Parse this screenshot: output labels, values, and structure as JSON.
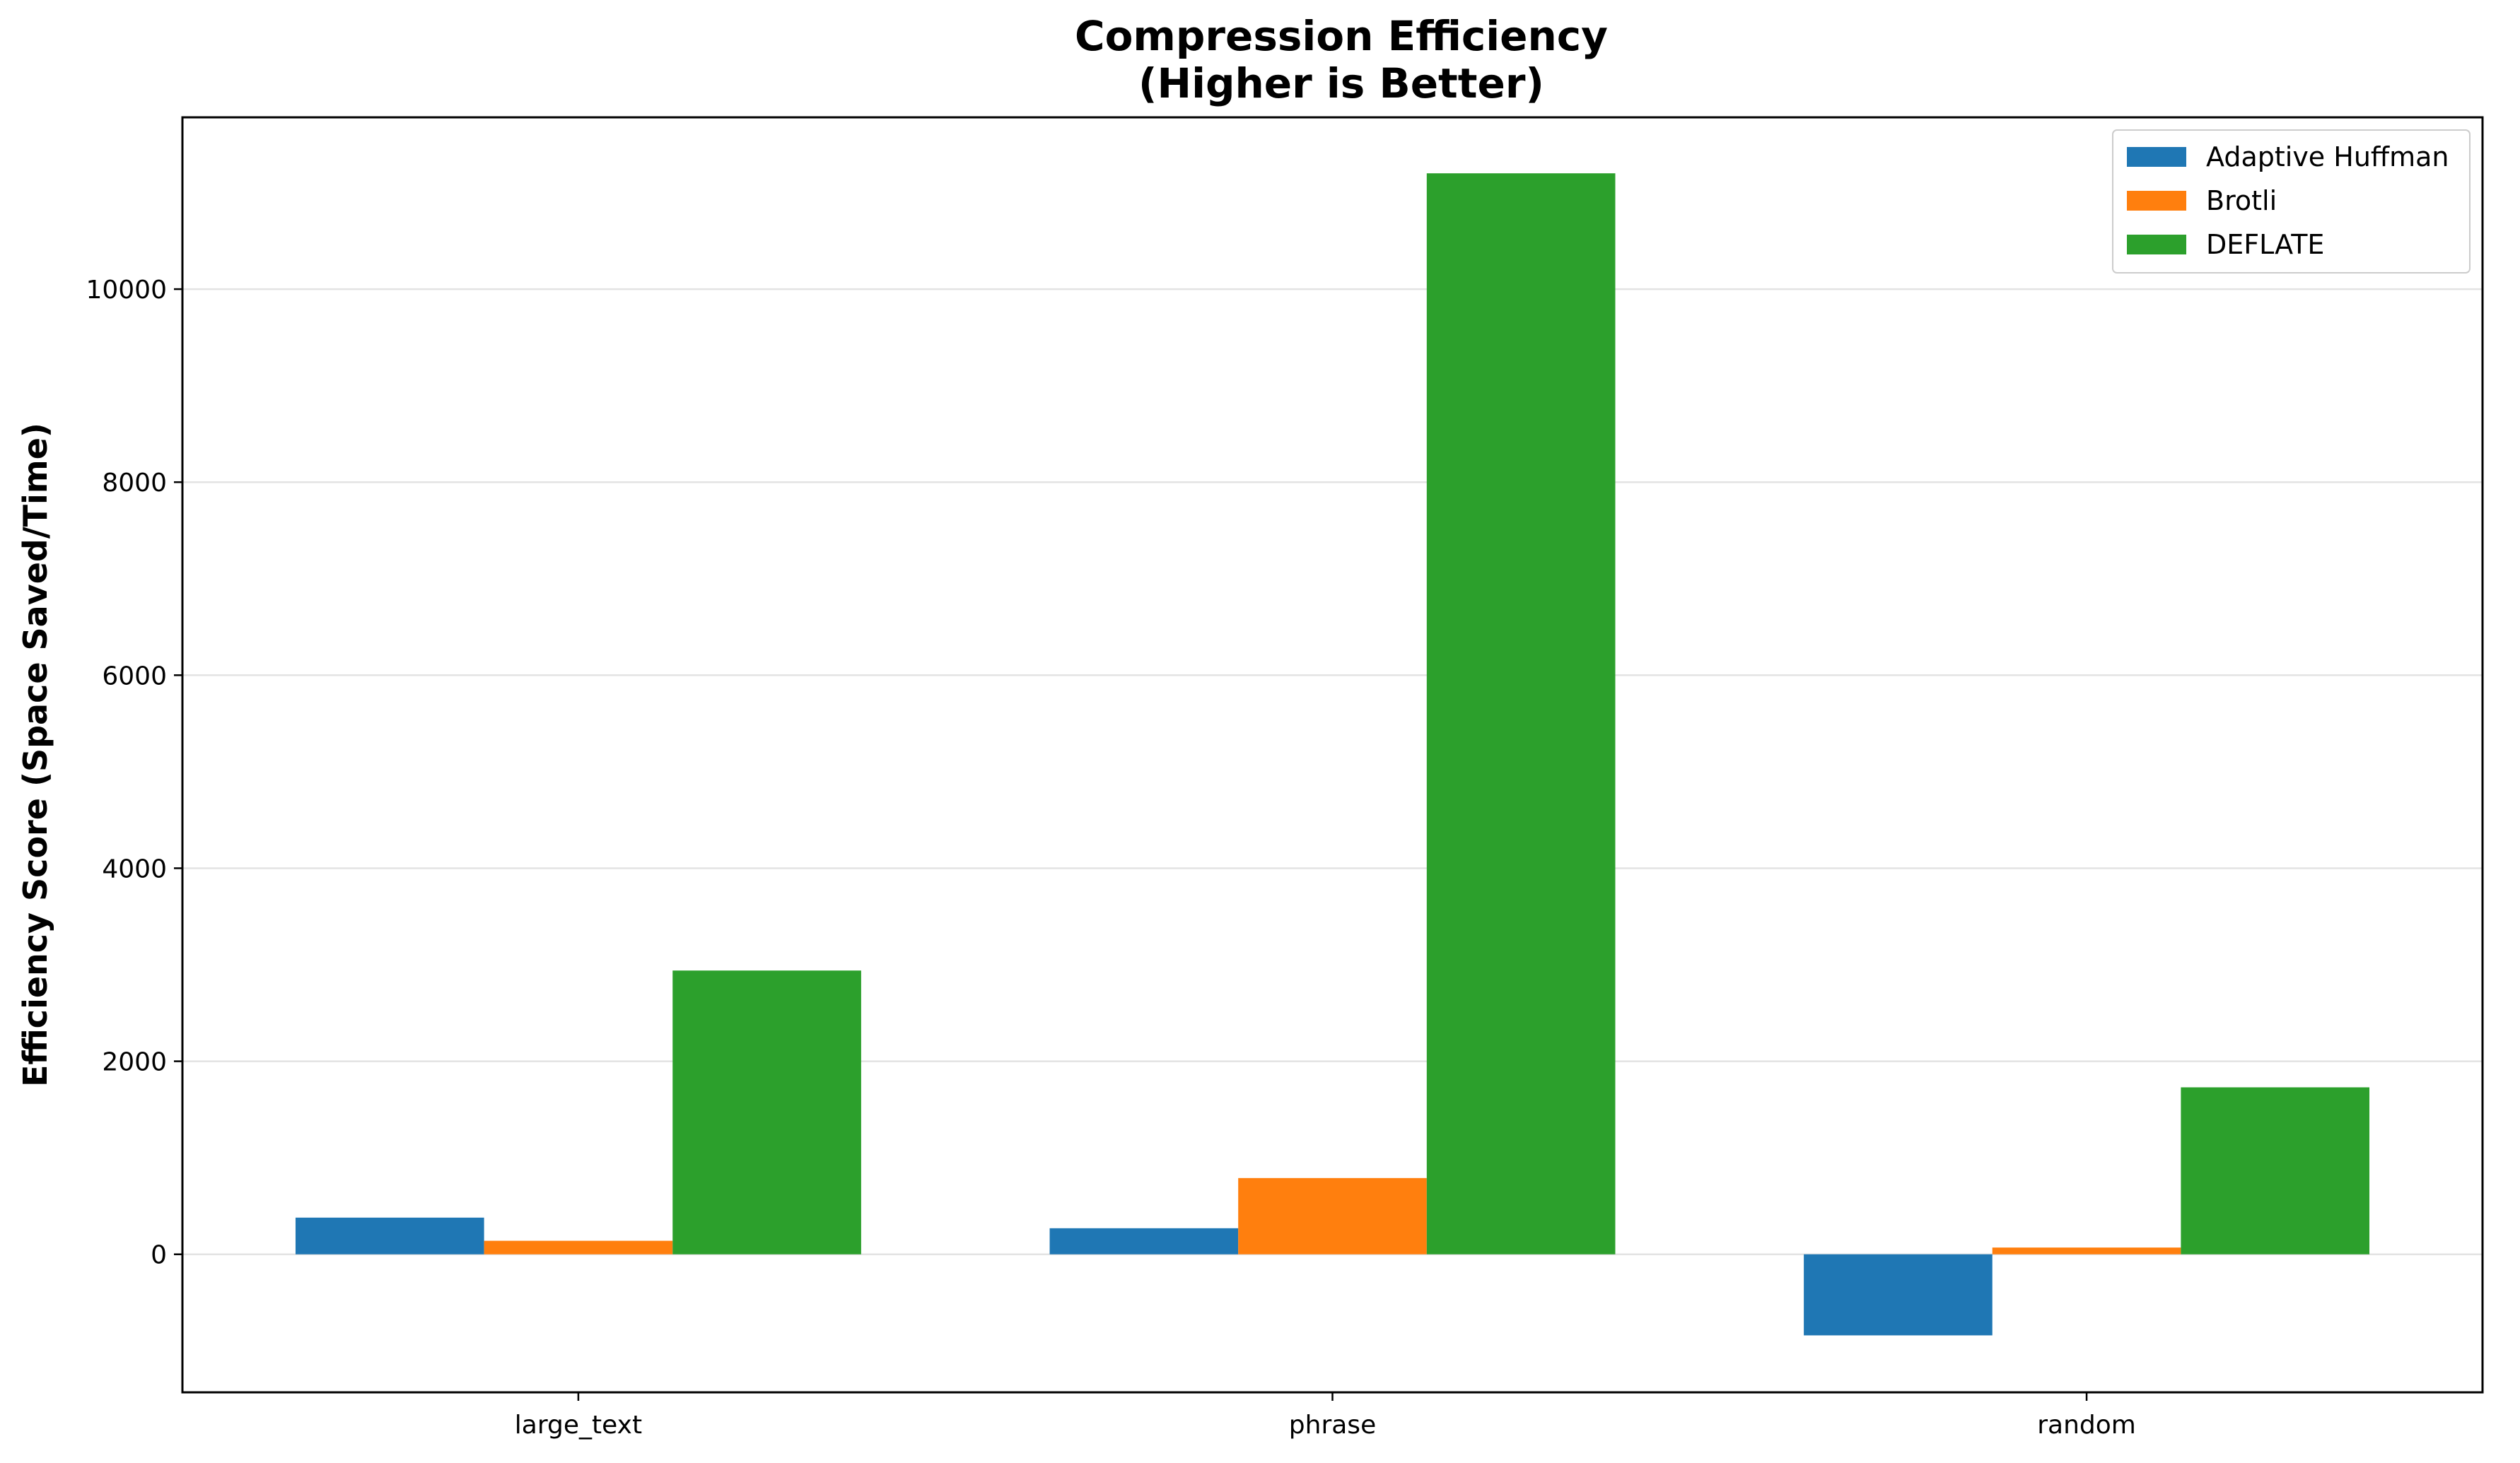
{
  "chart_data": {
    "type": "bar",
    "title_lines": [
      "Compression Efficiency",
      "(Higher is Better)"
    ],
    "xlabel": "",
    "ylabel": "Efficiency Score (Space Saved/Time)",
    "categories": [
      "large_text",
      "phrase",
      "random"
    ],
    "series": [
      {
        "name": "Adaptive Huffman",
        "color": "#1f77b4",
        "values": [
          380,
          270,
          -840
        ]
      },
      {
        "name": "Brotli",
        "color": "#ff7f0e",
        "values": [
          140,
          790,
          70
        ]
      },
      {
        "name": "DEFLATE",
        "color": "#2ca02c",
        "values": [
          2940,
          11200,
          1730
        ]
      }
    ],
    "ylim": [
      -1430,
      11780
    ],
    "yticks": [
      0,
      2000,
      4000,
      6000,
      8000,
      10000
    ],
    "grid": "y",
    "legend_position": "top-right"
  }
}
